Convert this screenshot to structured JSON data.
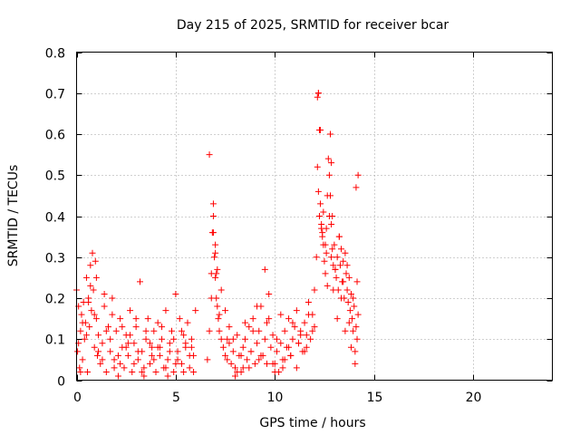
{
  "chart_data": {
    "type": "scatter",
    "title": "Day 215 of 2025, SRMTID for receiver bcar",
    "xlabel": "GPS time / hours",
    "ylabel": "SRMTID / TECUs",
    "xlim": [
      0,
      24
    ],
    "ylim": [
      0,
      0.8
    ],
    "xticks": [
      0,
      5,
      10,
      15,
      20
    ],
    "yticks": [
      0,
      0.1,
      0.2,
      0.3,
      0.4,
      0.5,
      0.6,
      0.7,
      0.8
    ],
    "xtick_labels": [
      "0",
      "5",
      "10",
      "15",
      "20"
    ],
    "ytick_labels": [
      "0",
      "0.1",
      "0.2",
      "0.3",
      "0.4",
      "0.5",
      "0.6",
      "0.7",
      "0.8"
    ],
    "grid": true,
    "marker": "+",
    "marker_color": "#ff0000",
    "series": [
      {
        "name": "SRMTID",
        "x": [
          0.0,
          0.05,
          0.1,
          0.15,
          0.2,
          0.25,
          0.3,
          0.35,
          0.4,
          0.45,
          0.5,
          0.55,
          0.6,
          0.65,
          0.7,
          0.75,
          0.8,
          0.85,
          0.9,
          0.95,
          1.0,
          1.05,
          1.1,
          1.2,
          1.3,
          1.4,
          1.5,
          1.6,
          1.7,
          1.8,
          1.9,
          2.0,
          2.1,
          2.2,
          2.3,
          2.4,
          2.5,
          2.6,
          2.7,
          2.8,
          2.9,
          3.0,
          3.1,
          3.2,
          3.3,
          3.4,
          3.5,
          3.6,
          3.7,
          3.8,
          3.9,
          4.0,
          4.1,
          4.2,
          4.3,
          4.4,
          4.5,
          4.6,
          4.7,
          4.8,
          4.9,
          5.0,
          5.1,
          5.2,
          5.3,
          5.4,
          5.5,
          5.6,
          5.7,
          5.8,
          5.9,
          6.0,
          0.1,
          0.3,
          0.5,
          0.7,
          0.9,
          1.1,
          1.3,
          1.5,
          1.7,
          1.9,
          2.1,
          2.3,
          2.5,
          2.7,
          2.9,
          3.1,
          3.3,
          3.5,
          3.7,
          3.9,
          4.1,
          4.3,
          4.5,
          4.7,
          4.9,
          5.1,
          5.3,
          5.5,
          5.7,
          5.9,
          0.2,
          0.6,
          1.0,
          1.4,
          1.8,
          2.2,
          2.6,
          3.0,
          3.4,
          3.8,
          4.2,
          4.6,
          5.0,
          5.4,
          5.8,
          6.6,
          6.7,
          6.8,
          6.85,
          6.9,
          6.95,
          7.0,
          7.05,
          7.1,
          7.15,
          7.2,
          7.3,
          7.4,
          7.5,
          7.6,
          7.7,
          7.8,
          7.9,
          8.0,
          8.1,
          8.2,
          8.3,
          8.4,
          8.5,
          8.6,
          8.7,
          8.8,
          8.9,
          9.0,
          9.1,
          9.2,
          9.3,
          9.4,
          9.5,
          9.6,
          9.7,
          9.8,
          9.9,
          10.0,
          10.1,
          10.2,
          10.3,
          10.4,
          10.5,
          10.6,
          10.7,
          10.8,
          10.9,
          11.0,
          11.1,
          11.2,
          11.3,
          11.4,
          11.5,
          11.6,
          11.7,
          11.8,
          11.9,
          12.0,
          6.7,
          6.9,
          7.1,
          7.3,
          7.5,
          7.7,
          7.9,
          8.1,
          8.3,
          8.5,
          8.7,
          8.9,
          9.1,
          9.3,
          9.5,
          9.7,
          9.9,
          10.1,
          10.3,
          10.5,
          10.7,
          10.9,
          11.1,
          11.3,
          11.5,
          11.7,
          11.9,
          6.8,
          7.0,
          7.2,
          7.6,
          8.0,
          8.4,
          8.8,
          9.2,
          9.6,
          10.0,
          10.4,
          10.8,
          11.2,
          11.6,
          12.0,
          12.1,
          12.15,
          12.2,
          12.25,
          12.3,
          12.35,
          12.4,
          12.45,
          12.5,
          12.55,
          12.6,
          12.65,
          12.7,
          12.75,
          12.8,
          12.85,
          12.9,
          12.95,
          13.0,
          13.05,
          13.1,
          13.15,
          13.2,
          13.25,
          13.3,
          13.35,
          13.4,
          13.45,
          13.5,
          13.55,
          13.6,
          13.65,
          13.7,
          13.75,
          13.8,
          13.85,
          13.9,
          13.95,
          14.0,
          14.05,
          14.1,
          14.15,
          14.2,
          12.15,
          12.25,
          12.35,
          12.45,
          12.55,
          12.65,
          12.75,
          12.85,
          12.95,
          13.05,
          13.15,
          13.25,
          13.35,
          13.45,
          13.55,
          13.65,
          13.75,
          13.85,
          13.95,
          14.05,
          14.15,
          12.2,
          12.2,
          12.3,
          12.8,
          12.85,
          12.9,
          14.2,
          14.1,
          6.9,
          7.0,
          7.05,
          12.4,
          12.6
        ],
        "y": [
          0.22,
          0.07,
          0.18,
          0.03,
          0.12,
          0.16,
          0.05,
          0.19,
          0.1,
          0.14,
          0.25,
          0.02,
          0.2,
          0.13,
          0.28,
          0.17,
          0.31,
          0.22,
          0.08,
          0.29,
          0.15,
          0.06,
          0.11,
          0.04,
          0.09,
          0.18,
          0.02,
          0.13,
          0.07,
          0.2,
          0.05,
          0.12,
          0.01,
          0.15,
          0.08,
          0.03,
          0.11,
          0.06,
          0.17,
          0.02,
          0.09,
          0.13,
          0.05,
          0.24,
          0.07,
          0.03,
          0.1,
          0.15,
          0.04,
          0.08,
          0.12,
          0.02,
          0.14,
          0.06,
          0.1,
          0.03,
          0.17,
          0.05,
          0.09,
          0.12,
          0.02,
          0.21,
          0.07,
          0.15,
          0.04,
          0.11,
          0.08,
          0.14,
          0.03,
          0.1,
          0.06,
          0.17,
          0.09,
          0.14,
          0.11,
          0.23,
          0.16,
          0.07,
          0.05,
          0.12,
          0.1,
          0.03,
          0.06,
          0.13,
          0.08,
          0.11,
          0.04,
          0.07,
          0.02,
          0.12,
          0.09,
          0.05,
          0.08,
          0.13,
          0.03,
          0.07,
          0.1,
          0.05,
          0.12,
          0.09,
          0.06,
          0.02,
          0.02,
          0.19,
          0.25,
          0.21,
          0.16,
          0.04,
          0.09,
          0.15,
          0.01,
          0.06,
          0.08,
          0.01,
          0.04,
          0.02,
          0.08,
          0.05,
          0.12,
          0.26,
          0.36,
          0.43,
          0.3,
          0.25,
          0.2,
          0.18,
          0.15,
          0.12,
          0.1,
          0.08,
          0.06,
          0.05,
          0.09,
          0.04,
          0.07,
          0.03,
          0.11,
          0.06,
          0.02,
          0.08,
          0.1,
          0.05,
          0.13,
          0.07,
          0.15,
          0.04,
          0.09,
          0.12,
          0.18,
          0.06,
          0.1,
          0.14,
          0.21,
          0.08,
          0.11,
          0.04,
          0.07,
          0.02,
          0.09,
          0.05,
          0.12,
          0.08,
          0.15,
          0.06,
          0.1,
          0.13,
          0.17,
          0.09,
          0.12,
          0.07,
          0.14,
          0.11,
          0.19,
          0.1,
          0.16,
          0.22,
          0.55,
          0.4,
          0.27,
          0.22,
          0.17,
          0.13,
          0.1,
          0.02,
          0.06,
          0.14,
          0.03,
          0.12,
          0.18,
          0.06,
          0.27,
          0.15,
          0.04,
          0.1,
          0.16,
          0.05,
          0.08,
          0.14,
          0.03,
          0.11,
          0.07,
          0.16,
          0.12,
          0.2,
          0.33,
          0.16,
          0.1,
          0.01,
          0.03,
          0.07,
          0.05,
          0.04,
          0.02,
          0.03,
          0.06,
          0.09,
          0.08,
          0.13,
          0.3,
          0.52,
          0.46,
          0.4,
          0.43,
          0.38,
          0.35,
          0.33,
          0.29,
          0.26,
          0.31,
          0.23,
          0.54,
          0.5,
          0.45,
          0.38,
          0.32,
          0.28,
          0.33,
          0.27,
          0.25,
          0.3,
          0.22,
          0.35,
          0.28,
          0.32,
          0.24,
          0.29,
          0.2,
          0.31,
          0.26,
          0.22,
          0.19,
          0.25,
          0.17,
          0.21,
          0.15,
          0.12,
          0.18,
          0.04,
          0.13,
          0.1,
          0.16,
          0.69,
          0.61,
          0.37,
          0.41,
          0.33,
          0.45,
          0.4,
          0.3,
          0.22,
          0.27,
          0.15,
          0.35,
          0.2,
          0.24,
          0.12,
          0.28,
          0.14,
          0.08,
          0.2,
          0.07,
          0.24,
          0.7,
          0.7,
          0.61,
          0.6,
          0.53,
          0.4,
          0.5,
          0.47,
          0.36,
          0.31,
          0.26,
          0.36,
          0.37
        ]
      }
    ]
  }
}
